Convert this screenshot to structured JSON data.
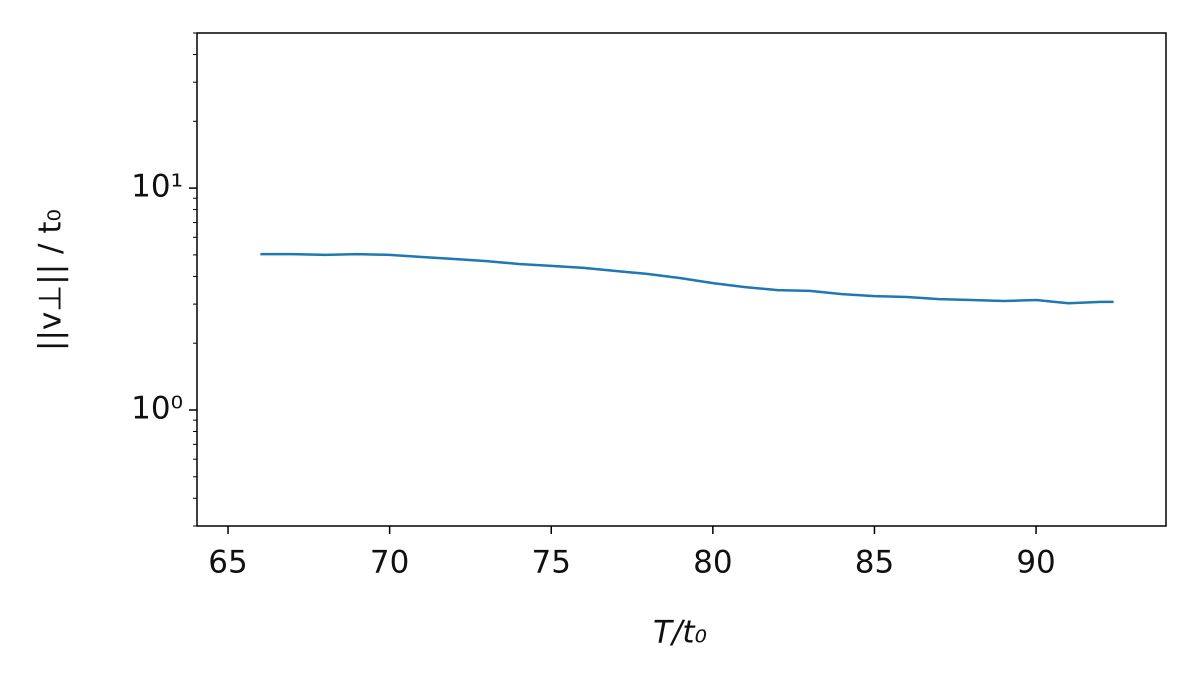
{
  "chart_data": {
    "type": "line",
    "xlabel": "T/t₀",
    "ylabel": "||v⊥|| / t₀",
    "x": [
      66,
      67,
      68,
      69,
      70,
      71,
      72,
      73,
      74,
      75,
      76,
      77,
      78,
      79,
      80,
      81,
      82,
      83,
      84,
      85,
      86,
      87,
      88,
      89,
      90,
      91,
      92,
      92.4
    ],
    "series": [
      {
        "color": "#1f77b4",
        "values": [
          5.04,
          5.04,
          5.0,
          5.04,
          5.0,
          4.89,
          4.79,
          4.69,
          4.55,
          4.46,
          4.37,
          4.23,
          4.1,
          3.93,
          3.73,
          3.58,
          3.47,
          3.44,
          3.33,
          3.26,
          3.23,
          3.16,
          3.13,
          3.1,
          3.13,
          3.03,
          3.07,
          3.07
        ]
      }
    ],
    "xlim": [
      64.04,
      94.02
    ],
    "xticks": [
      65,
      70,
      75,
      80,
      85,
      90
    ],
    "ylim": [
      0.3,
      50
    ],
    "ylog": true,
    "yticks": [
      {
        "value": 1,
        "label": "10⁰"
      },
      {
        "value": 10,
        "label": "10¹"
      }
    ],
    "yminorticks": [
      0.3,
      0.4,
      0.5,
      0.6,
      0.7,
      0.8,
      0.9,
      2,
      3,
      4,
      5,
      6,
      7,
      8,
      9,
      20,
      30,
      40,
      50
    ]
  }
}
